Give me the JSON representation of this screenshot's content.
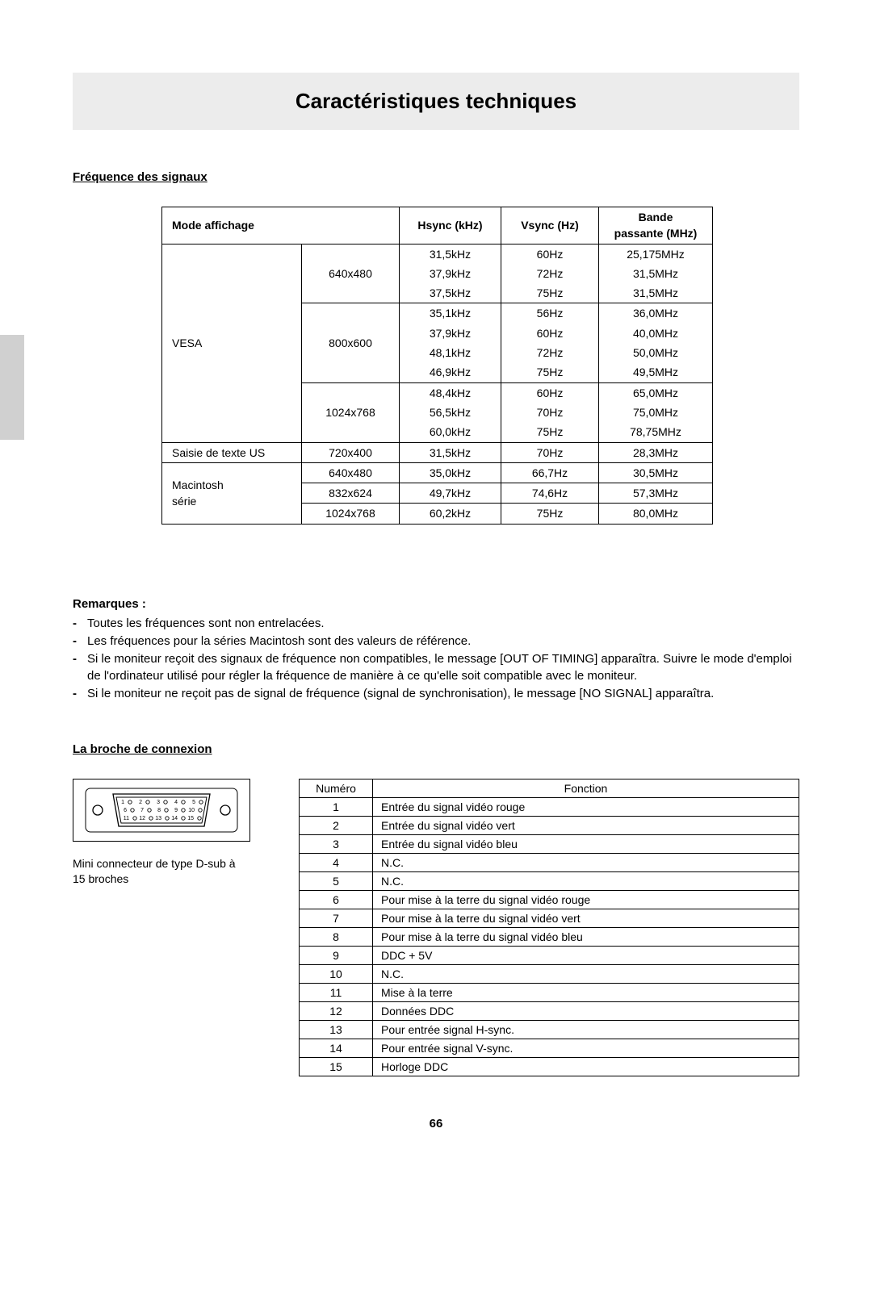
{
  "page": {
    "title": "Caractéristiques techniques",
    "number": "66"
  },
  "colors": {
    "band_bg": "#ececec",
    "side_tab_bg": "#d0d0d0",
    "border": "#000000",
    "text": "#000000",
    "page_bg": "#ffffff"
  },
  "freq_section": {
    "heading": "Fréquence des signaux",
    "columns": {
      "mode": "Mode affichage",
      "hsync": "Hsync (kHz)",
      "vsync": "Vsync (Hz)",
      "bandwidth_line1": "Bande",
      "bandwidth_line2": "passante (MHz)"
    },
    "groups": [
      {
        "mode": "VESA",
        "blocks": [
          {
            "resolution": "640x480",
            "rows": [
              {
                "hsync": "31,5kHz",
                "vsync": "60Hz",
                "bw": "25,175MHz"
              },
              {
                "hsync": "37,9kHz",
                "vsync": "72Hz",
                "bw": "31,5MHz"
              },
              {
                "hsync": "37,5kHz",
                "vsync": "75Hz",
                "bw": "31,5MHz"
              }
            ]
          },
          {
            "resolution": "800x600",
            "rows": [
              {
                "hsync": "35,1kHz",
                "vsync": "56Hz",
                "bw": "36,0MHz"
              },
              {
                "hsync": "37,9kHz",
                "vsync": "60Hz",
                "bw": "40,0MHz"
              },
              {
                "hsync": "48,1kHz",
                "vsync": "72Hz",
                "bw": "50,0MHz"
              },
              {
                "hsync": "46,9kHz",
                "vsync": "75Hz",
                "bw": "49,5MHz"
              }
            ]
          },
          {
            "resolution": "1024x768",
            "rows": [
              {
                "hsync": "48,4kHz",
                "vsync": "60Hz",
                "bw": "65,0MHz"
              },
              {
                "hsync": "56,5kHz",
                "vsync": "70Hz",
                "bw": "75,0MHz"
              },
              {
                "hsync": "60,0kHz",
                "vsync": "75Hz",
                "bw": "78,75MHz"
              }
            ]
          }
        ]
      },
      {
        "mode": "Saisie de texte US",
        "blocks": [
          {
            "resolution": "720x400",
            "rows": [
              {
                "hsync": "31,5kHz",
                "vsync": "70Hz",
                "bw": "28,3MHz"
              }
            ]
          }
        ]
      },
      {
        "mode_line1": "Macintosh",
        "mode_line2": "série",
        "blocks": [
          {
            "resolution": "640x480",
            "rows": [
              {
                "hsync": "35,0kHz",
                "vsync": "66,7Hz",
                "bw": "30,5MHz"
              }
            ]
          },
          {
            "resolution": "832x624",
            "rows": [
              {
                "hsync": "49,7kHz",
                "vsync": "74,6Hz",
                "bw": "57,3MHz"
              }
            ]
          },
          {
            "resolution": "1024x768",
            "rows": [
              {
                "hsync": "60,2kHz",
                "vsync": "75Hz",
                "bw": "80,0MHz"
              }
            ]
          }
        ]
      }
    ]
  },
  "notes": {
    "title": "Remarques :",
    "items": [
      "Toutes les fréquences sont non entrelacées.",
      "Les fréquences pour la séries Macintosh sont des valeurs de référence.",
      "Si le moniteur reçoit des signaux de fréquence non compatibles, le message [OUT OF TIMING] apparaîtra. Suivre le mode d'emploi de l'ordinateur utilisé pour régler la fréquence de manière à ce qu'elle soit compatible avec le moniteur.",
      "Si le moniteur ne reçoit pas de signal de fréquence (signal de synchronisation), le message [NO SIGNAL] apparaîtra."
    ]
  },
  "connector": {
    "heading": "La broche de connexion",
    "caption": "Mini connecteur de type D-sub à 15 broches",
    "pins_labels": {
      "row1": [
        "1",
        "2",
        "3",
        "4",
        "5"
      ],
      "row2": [
        "6",
        "7",
        "8",
        "9",
        "10"
      ],
      "row3": [
        "11",
        "12",
        "13",
        "14",
        "15"
      ]
    }
  },
  "pin_table": {
    "columns": {
      "num": "Numéro",
      "func": "Fonction"
    },
    "rows": [
      {
        "num": "1",
        "func": "Entrée du signal vidéo rouge"
      },
      {
        "num": "2",
        "func": "Entrée du signal vidéo vert"
      },
      {
        "num": "3",
        "func": "Entrée du signal vidéo bleu"
      },
      {
        "num": "4",
        "func": "N.C."
      },
      {
        "num": "5",
        "func": "N.C."
      },
      {
        "num": "6",
        "func": "Pour mise à la terre du signal vidéo rouge"
      },
      {
        "num": "7",
        "func": "Pour mise à la terre du signal vidéo vert"
      },
      {
        "num": "8",
        "func": "Pour mise à la terre du signal vidéo bleu"
      },
      {
        "num": "9",
        "func": "DDC + 5V"
      },
      {
        "num": "10",
        "func": "N.C."
      },
      {
        "num": "11",
        "func": "Mise à la terre"
      },
      {
        "num": "12",
        "func": "Données DDC"
      },
      {
        "num": "13",
        "func": "Pour entrée signal H-sync."
      },
      {
        "num": "14",
        "func": "Pour entrée signal V-sync."
      },
      {
        "num": "15",
        "func": "Horloge DDC"
      }
    ]
  }
}
